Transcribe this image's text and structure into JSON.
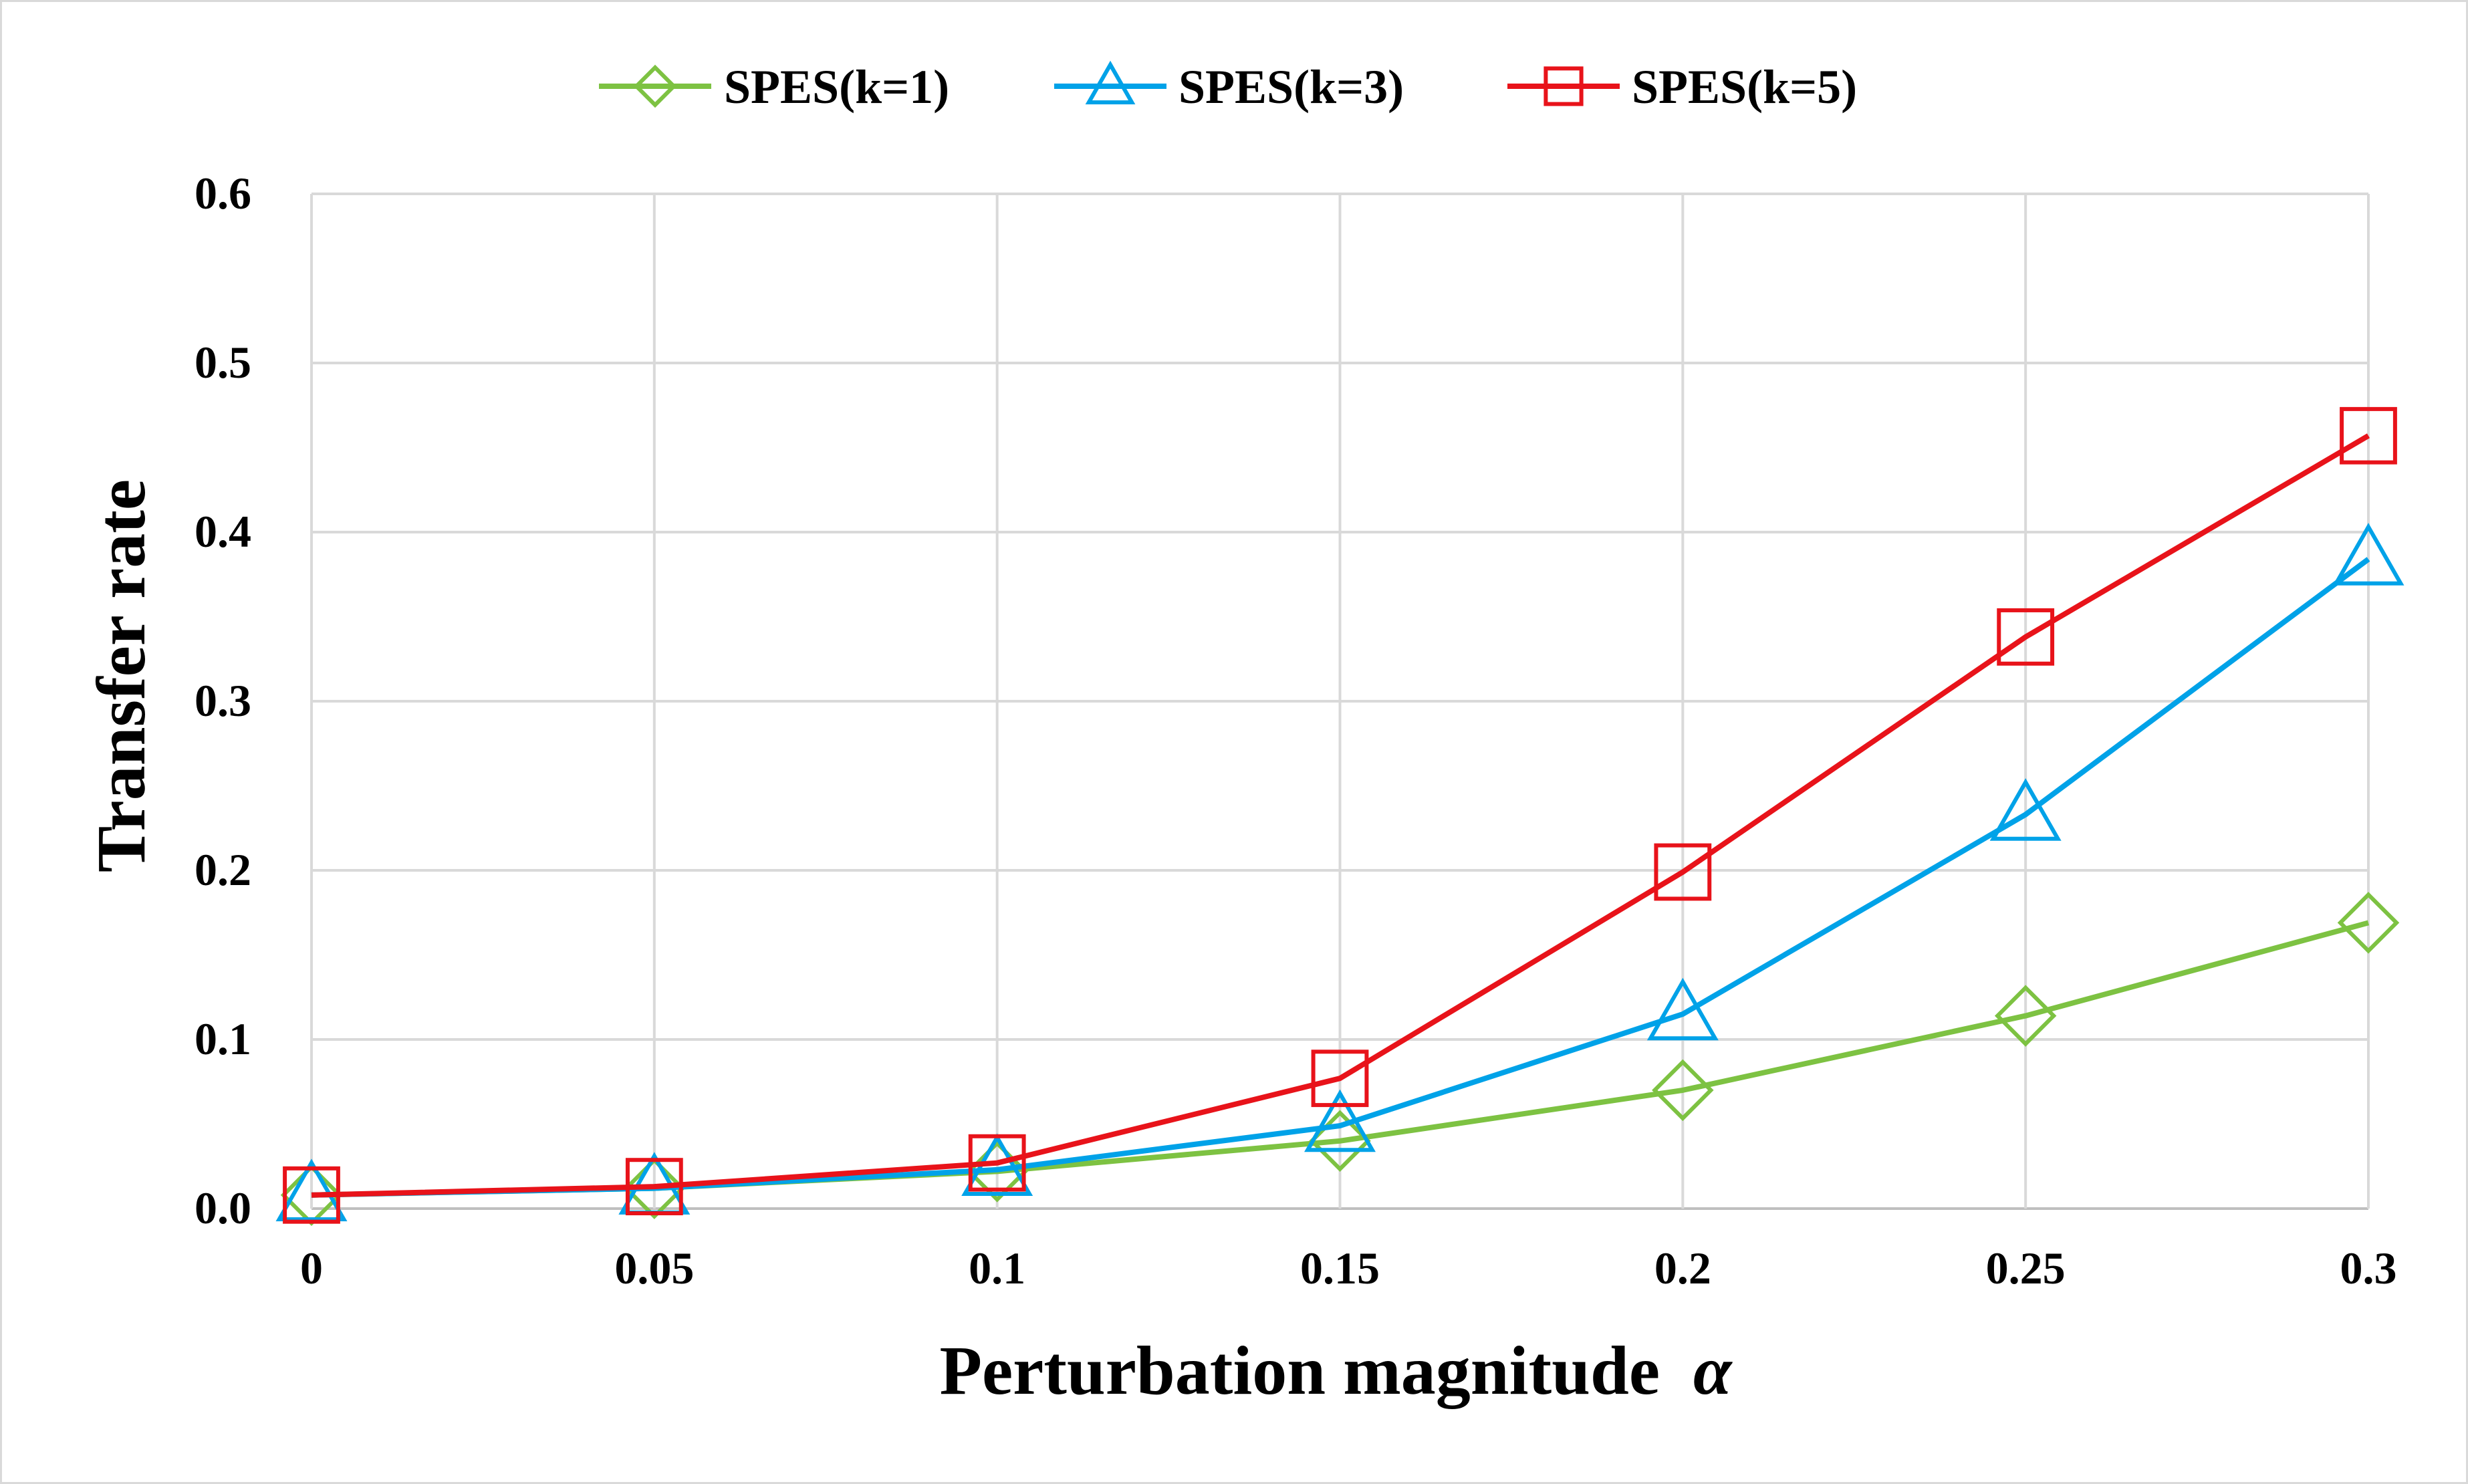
{
  "chart_data": {
    "type": "line",
    "title": "",
    "xlabel": "Perturbation magnitude",
    "xlabel_symbol": "α",
    "ylabel": "Transfer rate",
    "x": [
      0,
      0.05,
      0.1,
      0.15,
      0.2,
      0.25,
      0.3
    ],
    "xtick_labels": [
      "0",
      "0.05",
      "0.1",
      "0.15",
      "0.2",
      "0.25",
      "0.3"
    ],
    "ytick_labels": [
      "0.0",
      "0.1",
      "0.2",
      "0.3",
      "0.4",
      "0.5",
      "0.6"
    ],
    "ylim": [
      0,
      0.6
    ],
    "xlim": [
      0,
      0.3
    ],
    "grid": true,
    "legend_position": "top-center",
    "series": [
      {
        "name": "SPES(k=1)",
        "marker": "diamond",
        "color": "#7dc242",
        "values": [
          0.008,
          0.012,
          0.022,
          0.04,
          0.07,
          0.114,
          0.169
        ]
      },
      {
        "name": "SPES(k=3)",
        "marker": "triangle",
        "color": "#00a2e8",
        "values": [
          0.008,
          0.012,
          0.023,
          0.049,
          0.115,
          0.233,
          0.384
        ]
      },
      {
        "name": "SPES(k=5)",
        "marker": "square",
        "color": "#e8131a",
        "values": [
          0.008,
          0.013,
          0.027,
          0.077,
          0.199,
          0.338,
          0.457
        ]
      }
    ]
  }
}
